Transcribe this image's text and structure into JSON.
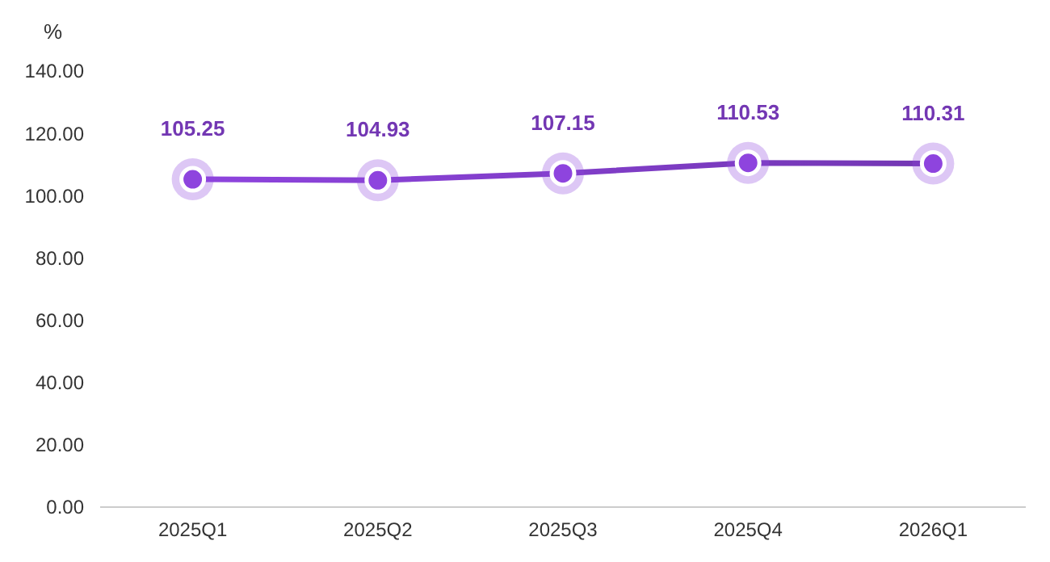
{
  "chart_data": {
    "type": "line",
    "ylabel": "%",
    "categories": [
      "2025Q1",
      "2025Q2",
      "2025Q3",
      "2025Q4",
      "2026Q1"
    ],
    "series": [
      {
        "color": "#8e44de",
        "values": [
          105.25,
          104.93,
          107.15,
          110.53,
          110.31
        ]
      }
    ],
    "ylim": [
      0,
      140
    ],
    "yticks": [
      {
        "value": 0,
        "label": "0.00"
      },
      {
        "value": 20,
        "label": "20.00"
      },
      {
        "value": 40,
        "label": "40.00"
      },
      {
        "value": 60,
        "label": "60.00"
      },
      {
        "value": 80,
        "label": "80.00"
      },
      {
        "value": 100,
        "label": "100.00"
      },
      {
        "value": 120,
        "label": "120.00"
      },
      {
        "value": 140,
        "label": "140.00"
      }
    ],
    "data_labels": true,
    "marker": "circle"
  }
}
